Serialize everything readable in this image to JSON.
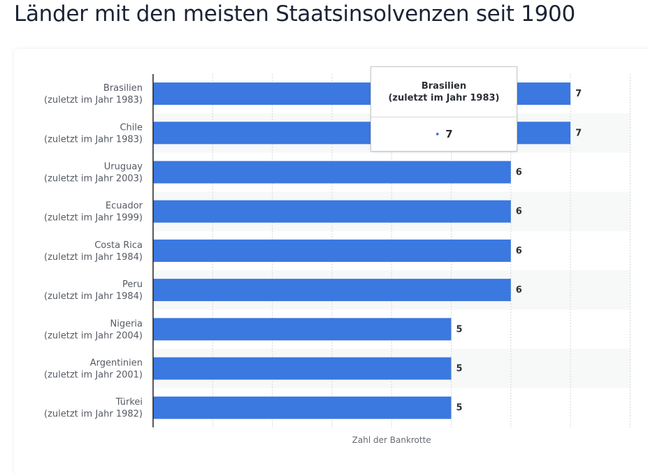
{
  "page": {
    "title": "Länder mit den meisten Staatsinsolvenzen seit 1900"
  },
  "tooltip": {
    "title_line1": "Brasilien",
    "title_line2": "(zuletzt im Jahr 1983)",
    "value": "7",
    "marker": "•"
  },
  "colors": {
    "bar": "#3b78df",
    "band": "#f7f8f8",
    "grid": "#d4d6d9",
    "axis": "#222222"
  },
  "chart_data": {
    "type": "bar",
    "orientation": "horizontal",
    "title": "Länder mit den meisten Staatsinsolvenzen seit 1900",
    "xlabel": "Zahl der Bankrotte",
    "ylabel": "",
    "xlim": [
      0,
      8
    ],
    "grid": true,
    "legend": "none",
    "categories": [
      {
        "name": "Brasilien",
        "note": "(zuletzt im Jahr 1983)"
      },
      {
        "name": "Chile",
        "note": "(zuletzt im Jahr 1983)"
      },
      {
        "name": "Uruguay",
        "note": "(zuletzt im Jahr 2003)"
      },
      {
        "name": "Ecuador",
        "note": "(zuletzt im Jahr 1999)"
      },
      {
        "name": "Costa Rica",
        "note": "(zuletzt im Jahr 1984)"
      },
      {
        "name": "Peru",
        "note": "(zuletzt im Jahr 1984)"
      },
      {
        "name": "Nigeria",
        "note": "(zuletzt im Jahr 2004)"
      },
      {
        "name": "Argentinien",
        "note": "(zuletzt im Jahr 2001)"
      },
      {
        "name": "Türkei",
        "note": "(zuletzt im Jahr 1982)"
      }
    ],
    "values": [
      7,
      7,
      6,
      6,
      6,
      6,
      5,
      5,
      5
    ],
    "data_labels": [
      "7",
      "7",
      "6",
      "6",
      "6",
      "6",
      "5",
      "5",
      "5"
    ]
  }
}
